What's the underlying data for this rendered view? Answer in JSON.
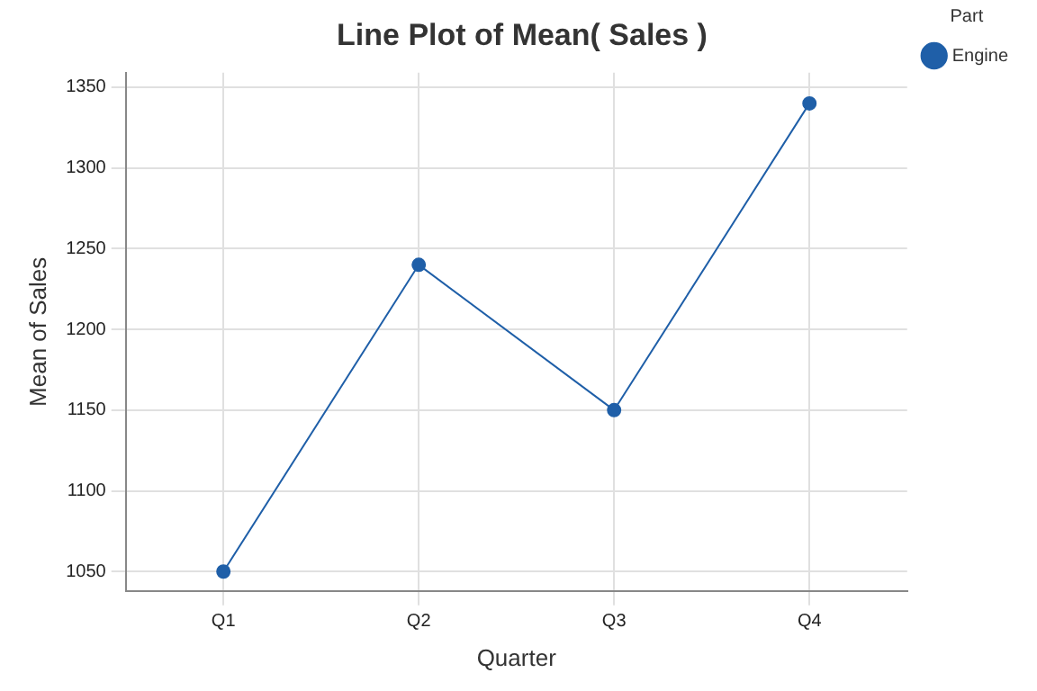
{
  "chart_data": {
    "type": "line",
    "title": "Line Plot of Mean( Sales )",
    "xlabel": "Quarter",
    "ylabel": "Mean of Sales",
    "legend_title": "Part",
    "categories": [
      "Q1",
      "Q2",
      "Q3",
      "Q4"
    ],
    "series": [
      {
        "name": "Engine",
        "color": "#1f5fa8",
        "values": [
          1050,
          1240,
          1150,
          1340
        ]
      }
    ],
    "ylim": [
      1038,
      1359
    ],
    "yticks": [
      1050,
      1100,
      1150,
      1200,
      1250,
      1300,
      1350
    ],
    "grid": true,
    "legend": "top right",
    "marker": "circle",
    "line_style": "solid"
  }
}
